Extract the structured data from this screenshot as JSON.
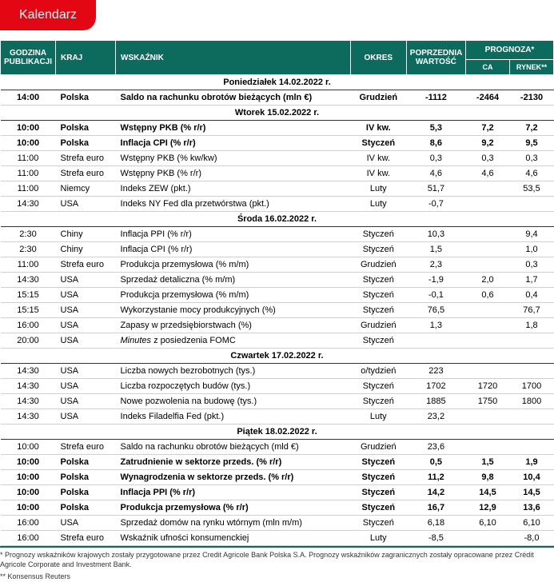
{
  "title": "Kalendarz",
  "colors": {
    "badge_bg": "#e30613",
    "header_bg": "#0d6b5e",
    "row_border": "#d0d0d0"
  },
  "headers": {
    "time": "GODZINA PUBLIKACJI",
    "country": "KRAJ",
    "indicator": "WSKAŹNIK",
    "period": "OKRES",
    "prev": "POPRZEDNIA WARTOŚĆ",
    "forecast": "PROGNOZA*",
    "ca": "CA",
    "market": "RYNEK**"
  },
  "sections": [
    {
      "day": "Poniedziałek 14.02.2022 r.",
      "rows": [
        {
          "bold": true,
          "time": "14:00",
          "country": "Polska",
          "indicator": "Saldo na rachunku obrotów bieżących (mln €)",
          "period": "Grudzień",
          "prev": "-1112",
          "ca": "-2464",
          "market": "-2130"
        }
      ]
    },
    {
      "day": "Wtorek 15.02.2022 r.",
      "rows": [
        {
          "bold": true,
          "time": "10:00",
          "country": "Polska",
          "indicator": "Wstępny PKB (% r/r)",
          "period": "IV kw.",
          "prev": "5,3",
          "ca": "7,2",
          "market": "7,2"
        },
        {
          "bold": true,
          "time": "10:00",
          "country": "Polska",
          "indicator": "Inflacja CPI (% r/r)",
          "period": "Styczeń",
          "prev": "8,6",
          "ca": "9,2",
          "market": "9,5"
        },
        {
          "bold": false,
          "time": "11:00",
          "country": "Strefa euro",
          "indicator": "Wstępny PKB (% kw/kw)",
          "period": "IV kw.",
          "prev": "0,3",
          "ca": "0,3",
          "market": "0,3"
        },
        {
          "bold": false,
          "time": "11:00",
          "country": "Strefa euro",
          "indicator": "Wstępny PKB (% r/r)",
          "period": "IV kw.",
          "prev": "4,6",
          "ca": "4,6",
          "market": "4,6"
        },
        {
          "bold": false,
          "time": "11:00",
          "country": "Niemcy",
          "indicator": "Indeks ZEW (pkt.)",
          "period": "Luty",
          "prev": "51,7",
          "ca": "",
          "market": "53,5"
        },
        {
          "bold": false,
          "time": "14:30",
          "country": "USA",
          "indicator": "Indeks NY Fed dla przetwórstwa (pkt.)",
          "period": "Luty",
          "prev": "-0,7",
          "ca": "",
          "market": ""
        }
      ]
    },
    {
      "day": "Środa 16.02.2022 r.",
      "rows": [
        {
          "bold": false,
          "time": "2:30",
          "country": "Chiny",
          "indicator": "Inflacja PPI (% r/r)",
          "period": "Styczeń",
          "prev": "10,3",
          "ca": "",
          "market": "9,4"
        },
        {
          "bold": false,
          "time": "2:30",
          "country": "Chiny",
          "indicator": "Inflacja CPI (% r/r)",
          "period": "Styczeń",
          "prev": "1,5",
          "ca": "",
          "market": "1,0"
        },
        {
          "bold": false,
          "time": "11:00",
          "country": "Strefa euro",
          "indicator": "Produkcja przemysłowa (% m/m)",
          "period": "Grudzień",
          "prev": "2,3",
          "ca": "",
          "market": "0,3"
        },
        {
          "bold": false,
          "time": "14:30",
          "country": "USA",
          "indicator": "Sprzedaż detaliczna (% m/m)",
          "period": "Styczeń",
          "prev": "-1,9",
          "ca": "2,0",
          "market": "1,7"
        },
        {
          "bold": false,
          "time": "15:15",
          "country": "USA",
          "indicator": "Produkcja przemysłowa (% m/m)",
          "period": "Styczeń",
          "prev": "-0,1",
          "ca": "0,6",
          "market": "0,4"
        },
        {
          "bold": false,
          "time": "15:15",
          "country": "USA",
          "indicator": "Wykorzystanie mocy produkcyjnych (%)",
          "period": "Styczeń",
          "prev": "76,5",
          "ca": "",
          "market": "76,7"
        },
        {
          "bold": false,
          "time": "16:00",
          "country": "USA",
          "indicator": "Zapasy w przedsiębiorstwach (%)",
          "period": "Grudzień",
          "prev": "1,3",
          "ca": "",
          "market": "1,8"
        },
        {
          "bold": false,
          "time": "20:00",
          "country": "USA",
          "indicator_html": "<span class='italic'>Minutes</span> z posiedzenia FOMC",
          "indicator": "Minutes z posiedzenia FOMC",
          "period": "Styczeń",
          "prev": "",
          "ca": "",
          "market": ""
        }
      ]
    },
    {
      "day": "Czwartek 17.02.2022 r.",
      "rows": [
        {
          "bold": false,
          "time": "14:30",
          "country": "USA",
          "indicator": "Liczba nowych bezrobotnych (tys.)",
          "period": "o/tydzień",
          "prev": "223",
          "ca": "",
          "market": ""
        },
        {
          "bold": false,
          "time": "14:30",
          "country": "USA",
          "indicator": "Liczba rozpoczętych budów (tys.)",
          "period": "Styczeń",
          "prev": "1702",
          "ca": "1720",
          "market": "1700"
        },
        {
          "bold": false,
          "time": "14:30",
          "country": "USA",
          "indicator": "Nowe pozwolenia na budowę (tys.)",
          "period": "Styczeń",
          "prev": "1885",
          "ca": "1750",
          "market": "1800"
        },
        {
          "bold": false,
          "time": "14:30",
          "country": "USA",
          "indicator": "Indeks Filadelfia Fed (pkt.)",
          "period": "Luty",
          "prev": "23,2",
          "ca": "",
          "market": ""
        }
      ]
    },
    {
      "day": "Piątek 18.02.2022 r.",
      "rows": [
        {
          "bold": false,
          "time": "10:00",
          "country": "Strefa euro",
          "indicator": "Saldo na rachunku obrotów bieżących (mld €)",
          "period": "Grudzień",
          "prev": "23,6",
          "ca": "",
          "market": ""
        },
        {
          "bold": true,
          "time": "10:00",
          "country": "Polska",
          "indicator": "Zatrudnienie w sektorze przeds. (% r/r)",
          "period": "Styczeń",
          "prev": "0,5",
          "ca": "1,5",
          "market": "1,9"
        },
        {
          "bold": true,
          "time": "10:00",
          "country": "Polska",
          "indicator": "Wynagrodzenia w sektorze przeds. (% r/r)",
          "period": "Styczeń",
          "prev": "11,2",
          "ca": "9,8",
          "market": "10,4"
        },
        {
          "bold": true,
          "time": "10:00",
          "country": "Polska",
          "indicator": "Inflacja PPI (% r/r)",
          "period": "Styczeń",
          "prev": "14,2",
          "ca": "14,5",
          "market": "14,5"
        },
        {
          "bold": true,
          "time": "10:00",
          "country": "Polska",
          "indicator": "Produkcja przemysłowa (% r/r)",
          "period": "Styczeń",
          "prev": "16,7",
          "ca": "12,9",
          "market": "13,6"
        },
        {
          "bold": false,
          "time": "16:00",
          "country": "USA",
          "indicator": "Sprzedaż domów na rynku wtórnym (mln m/m)",
          "period": "Styczeń",
          "prev": "6,18",
          "ca": "6,10",
          "market": "6,10"
        },
        {
          "bold": false,
          "time": "16:00",
          "country": "Strefa euro",
          "indicator": "Wskaźnik ufności konsumenckiej",
          "period": "Luty",
          "prev": "-8,5",
          "ca": "",
          "market": "-8,0"
        }
      ]
    }
  ],
  "footnotes": {
    "f1": "* Prognozy wskaźników krajowych zostały przygotowane przez Credit Agricole Bank Polska S.A. Prognozy wskaźników zagranicznych zostały opracowane przez Crédit Agricole Corporate and Investment Bank.",
    "f2": "** Konsensus Reuters"
  }
}
